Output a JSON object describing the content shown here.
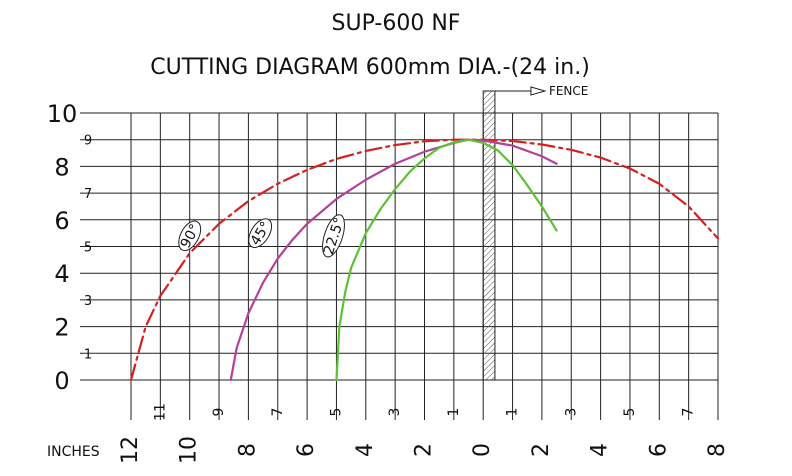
{
  "chart_data": {
    "type": "line",
    "title": "SUP-600 NF",
    "subtitle": "CUTTING DIAGRAM 600mm DIA.-(24 in.)",
    "xlabel": "INCHES",
    "ylabel": "",
    "fence_label": "FENCE",
    "xlim": [
      -12.0,
      8.0
    ],
    "ylim": [
      0,
      10
    ],
    "grid": true,
    "x_ticks_major": [
      {
        "v": -12,
        "t": "12"
      },
      {
        "v": -10,
        "t": "10"
      },
      {
        "v": -8,
        "t": "8"
      },
      {
        "v": -6,
        "t": "6"
      },
      {
        "v": -4,
        "t": "4"
      },
      {
        "v": -2,
        "t": "2"
      },
      {
        "v": 0,
        "t": "0"
      },
      {
        "v": 2,
        "t": "2"
      },
      {
        "v": 4,
        "t": "4"
      },
      {
        "v": 6,
        "t": "6"
      },
      {
        "v": 8,
        "t": "8"
      }
    ],
    "x_ticks_minor": [
      {
        "v": -11,
        "t": "11"
      },
      {
        "v": -9,
        "t": "9"
      },
      {
        "v": -7,
        "t": "7"
      },
      {
        "v": -5,
        "t": "5"
      },
      {
        "v": -3,
        "t": "3"
      },
      {
        "v": -1,
        "t": "1"
      },
      {
        "v": 1,
        "t": "1"
      },
      {
        "v": 3,
        "t": "3"
      },
      {
        "v": 5,
        "t": "5"
      },
      {
        "v": 7,
        "t": "7"
      }
    ],
    "y_ticks_major": [
      {
        "v": 0,
        "t": "0"
      },
      {
        "v": 2,
        "t": "2"
      },
      {
        "v": 4,
        "t": "4"
      },
      {
        "v": 6,
        "t": "6"
      },
      {
        "v": 8,
        "t": "8"
      },
      {
        "v": 10,
        "t": "10"
      }
    ],
    "y_ticks_minor": [
      {
        "v": 1,
        "t": "1"
      },
      {
        "v": 3,
        "t": "3"
      },
      {
        "v": 5,
        "t": "5"
      },
      {
        "v": 7,
        "t": "7"
      },
      {
        "v": 9,
        "t": "9"
      }
    ],
    "fence": {
      "x_from": 0.0,
      "x_to": 0.4
    },
    "series": [
      {
        "name": "90°",
        "color": "#d62020",
        "dashed": true,
        "x": [
          -12.0,
          -11.5,
          -11.0,
          -10.0,
          -9.0,
          -8.0,
          -7.0,
          -6.0,
          -5.0,
          -4.0,
          -3.0,
          -2.0,
          -1.0,
          0.0,
          1.0,
          2.0,
          3.0,
          4.0,
          5.0,
          6.0,
          7.0,
          8.0
        ],
        "y": [
          0.0,
          2.0,
          3.15,
          4.75,
          5.85,
          6.7,
          7.35,
          7.87,
          8.28,
          8.58,
          8.8,
          8.94,
          9.0,
          9.0,
          8.95,
          8.82,
          8.62,
          8.33,
          7.92,
          7.35,
          6.5,
          5.3
        ]
      },
      {
        "name": "45°",
        "color": "#b4409a",
        "dashed": false,
        "x": [
          -8.6,
          -8.4,
          -8.0,
          -7.5,
          -7.0,
          -6.5,
          -6.0,
          -5.0,
          -4.0,
          -3.0,
          -2.0,
          -1.0,
          -0.5,
          0.0,
          1.0,
          2.0,
          2.5
        ],
        "y": [
          0.0,
          1.2,
          2.5,
          3.65,
          4.55,
          5.25,
          5.85,
          6.78,
          7.5,
          8.1,
          8.55,
          8.88,
          9.0,
          8.97,
          8.78,
          8.38,
          8.1
        ]
      },
      {
        "name": "22.5°",
        "color": "#5cc234",
        "dashed": false,
        "x": [
          -5.0,
          -4.9,
          -4.7,
          -4.5,
          -4.0,
          -3.5,
          -3.0,
          -2.5,
          -2.0,
          -1.5,
          -1.0,
          -0.5,
          0.0,
          0.5,
          1.0,
          1.5,
          2.0,
          2.5
        ],
        "y": [
          0.0,
          2.0,
          3.3,
          4.2,
          5.5,
          6.4,
          7.15,
          7.8,
          8.3,
          8.7,
          8.9,
          9.0,
          8.88,
          8.6,
          8.05,
          7.3,
          6.5,
          5.6
        ]
      }
    ],
    "annotations": [
      {
        "text": "90°",
        "x": -10.0,
        "y": 5.4,
        "angle": -62
      },
      {
        "text": "45°",
        "x": -7.6,
        "y": 5.5,
        "angle": -58
      },
      {
        "text": "22.5°",
        "x": -5.1,
        "y": 5.4,
        "angle": -72
      }
    ]
  }
}
